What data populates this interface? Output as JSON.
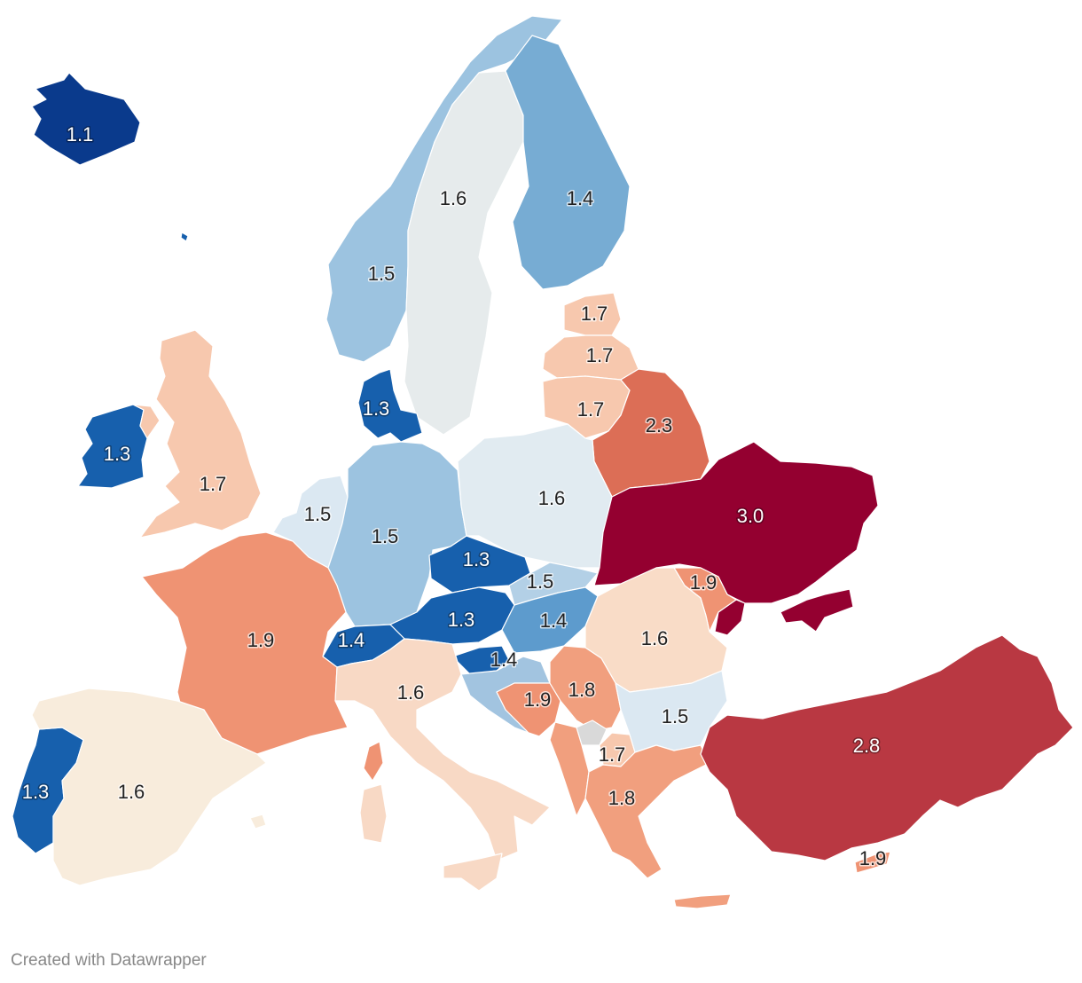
{
  "credit": "Created with Datawrapper",
  "no_data_color": "#d9d9d9",
  "scale_colors": {
    "1.1": "#0a3a8c",
    "1.3": "#1760ad",
    "1.4": "#77acd3",
    "1.5": "#9cc3e0",
    "1.6": "#e6ebec",
    "1.6-warm": "#f8ecdc",
    "1.7": "#f7c8ae",
    "1.8": "#f19f7e",
    "1.9": "#ef9373",
    "2.3": "#dc6e56",
    "2.8": "#b93842",
    "3.0": "#940030"
  },
  "regions": [
    {
      "name": "iceland",
      "value": "1.1",
      "color": "#0a3a8c",
      "label_color": "#ffffff"
    },
    {
      "name": "ireland",
      "value": "1.3",
      "color": "#1760ad",
      "label_color": "#ffffff"
    },
    {
      "name": "united-kingdom",
      "value": "1.7",
      "color": "#f7c8ae",
      "label_color": "#222222"
    },
    {
      "name": "norway",
      "value": "1.5",
      "color": "#9cc3e0",
      "label_color": "#222222"
    },
    {
      "name": "sweden",
      "value": "1.6",
      "color": "#e6ebec",
      "label_color": "#222222"
    },
    {
      "name": "finland",
      "value": "1.4",
      "color": "#77acd3",
      "label_color": "#222222"
    },
    {
      "name": "denmark",
      "value": "1.3",
      "color": "#1760ad",
      "label_color": "#ffffff"
    },
    {
      "name": "estonia",
      "value": "1.7",
      "color": "#f7c8ae",
      "label_color": "#222222"
    },
    {
      "name": "latvia",
      "value": "1.7",
      "color": "#f7c8ae",
      "label_color": "#222222"
    },
    {
      "name": "lithuania",
      "value": "1.7",
      "color": "#f7c8ae",
      "label_color": "#222222"
    },
    {
      "name": "belarus",
      "value": "2.3",
      "color": "#dc6e56",
      "label_color": "#222222"
    },
    {
      "name": "benelux",
      "value": "1.5",
      "color": "#dbe8f2",
      "label_color": "#222222"
    },
    {
      "name": "germany",
      "value": "1.5",
      "color": "#9cc3e0",
      "label_color": "#222222"
    },
    {
      "name": "poland",
      "value": "1.6",
      "color": "#e1ebf1",
      "label_color": "#222222"
    },
    {
      "name": "ukraine",
      "value": "3.0",
      "color": "#940030",
      "label_color": "#ffffff"
    },
    {
      "name": "moldova",
      "value": "1.9",
      "color": "#ef9373",
      "label_color": "#222222"
    },
    {
      "name": "czechia",
      "value": "1.3",
      "color": "#1760ad",
      "label_color": "#ffffff"
    },
    {
      "name": "slovakia",
      "value": "1.5",
      "color": "#b3d0e6",
      "label_color": "#222222"
    },
    {
      "name": "austria",
      "value": "1.3",
      "color": "#1760ad",
      "label_color": "#ffffff"
    },
    {
      "name": "hungary",
      "value": "1.4",
      "color": "#5d9bcd",
      "label_color": "#222222"
    },
    {
      "name": "switzerland",
      "value": "1.4",
      "color": "#1760ad",
      "label_color": "#ffffff"
    },
    {
      "name": "slovenia",
      "value": "1.4",
      "color": "#1760ad",
      "label_color": "#ffffff"
    },
    {
      "name": "croatia",
      "value": "1.4",
      "color": "#a2c4e0",
      "label_color": "#222222"
    },
    {
      "name": "france",
      "value": "1.9",
      "color": "#ef9373",
      "label_color": "#222222"
    },
    {
      "name": "italy",
      "value": "1.6",
      "color": "#f8d9c5",
      "label_color": "#222222"
    },
    {
      "name": "romania",
      "value": "1.6",
      "color": "#f9dcc7",
      "label_color": "#222222"
    },
    {
      "name": "bosnia",
      "value": "1.9",
      "color": "#ef9373",
      "label_color": "#222222"
    },
    {
      "name": "serbia",
      "value": "1.8",
      "color": "#f19f7e",
      "label_color": "#222222"
    },
    {
      "name": "bulgaria",
      "value": "1.5",
      "color": "#dbe8f2",
      "label_color": "#222222"
    },
    {
      "name": "north-macedonia",
      "value": "1.7",
      "color": "#f7c8ae",
      "label_color": "#222222"
    },
    {
      "name": "greece",
      "value": "1.8",
      "color": "#f19f7e",
      "label_color": "#222222"
    },
    {
      "name": "turkey",
      "value": "2.8",
      "color": "#b93842",
      "label_color": "#ffffff"
    },
    {
      "name": "cyprus",
      "value": "1.9",
      "color": "#ef9373",
      "label_color": "#222222"
    },
    {
      "name": "portugal",
      "value": "1.3",
      "color": "#1760ad",
      "label_color": "#ffffff"
    },
    {
      "name": "spain",
      "value": "1.6",
      "color": "#f8ecdc",
      "label_color": "#222222"
    }
  ]
}
